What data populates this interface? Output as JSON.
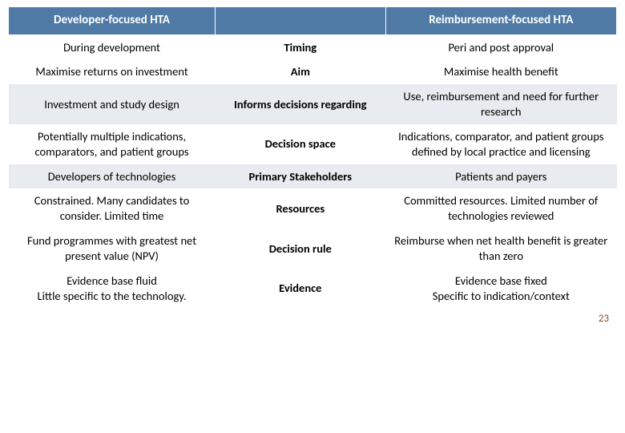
{
  "header": {
    "left": "Developer-focused HTA",
    "right": "Reimbursement-focused HTA"
  },
  "rows": [
    {
      "left": "During development",
      "mid": "Timing",
      "right": "Peri and post approval",
      "band": false
    },
    {
      "left": "Maximise returns on investment",
      "mid": "Aim",
      "right": "Maximise health benefit",
      "band": false
    },
    {
      "left": "Investment and study design",
      "mid": "Informs decisions regarding",
      "right": "Use, reimbursement and need for further research",
      "band": true
    },
    {
      "left": "Potentially multiple indications, comparators, and patient groups",
      "mid": "Decision space",
      "right": "Indications, comparator, and patient groups defined by local practice and licensing",
      "band": false
    },
    {
      "left": "Developers of technologies",
      "mid": "Primary Stakeholders",
      "right": "Patients and payers",
      "band": true
    },
    {
      "left": "Constrained. Many candidates to consider. Limited time",
      "mid": "Resources",
      "right": "Committed resources. Limited number of technologies reviewed",
      "band": false
    },
    {
      "left": "Fund programmes with greatest net present value (NPV)",
      "mid": "Decision rule",
      "right": "Reimburse when net health benefit is greater than zero",
      "band": false
    },
    {
      "left": "Evidence base fluid\nLittle specific to the technology.",
      "mid": "Evidence",
      "right": "Evidence base fixed\nSpecific to indication/context",
      "band": false
    }
  ],
  "page_number": "23",
  "colors": {
    "header_bg": "#4e7aa5",
    "band_bg": "#e8ebef",
    "pagenum_color": "#8c4a2a"
  }
}
